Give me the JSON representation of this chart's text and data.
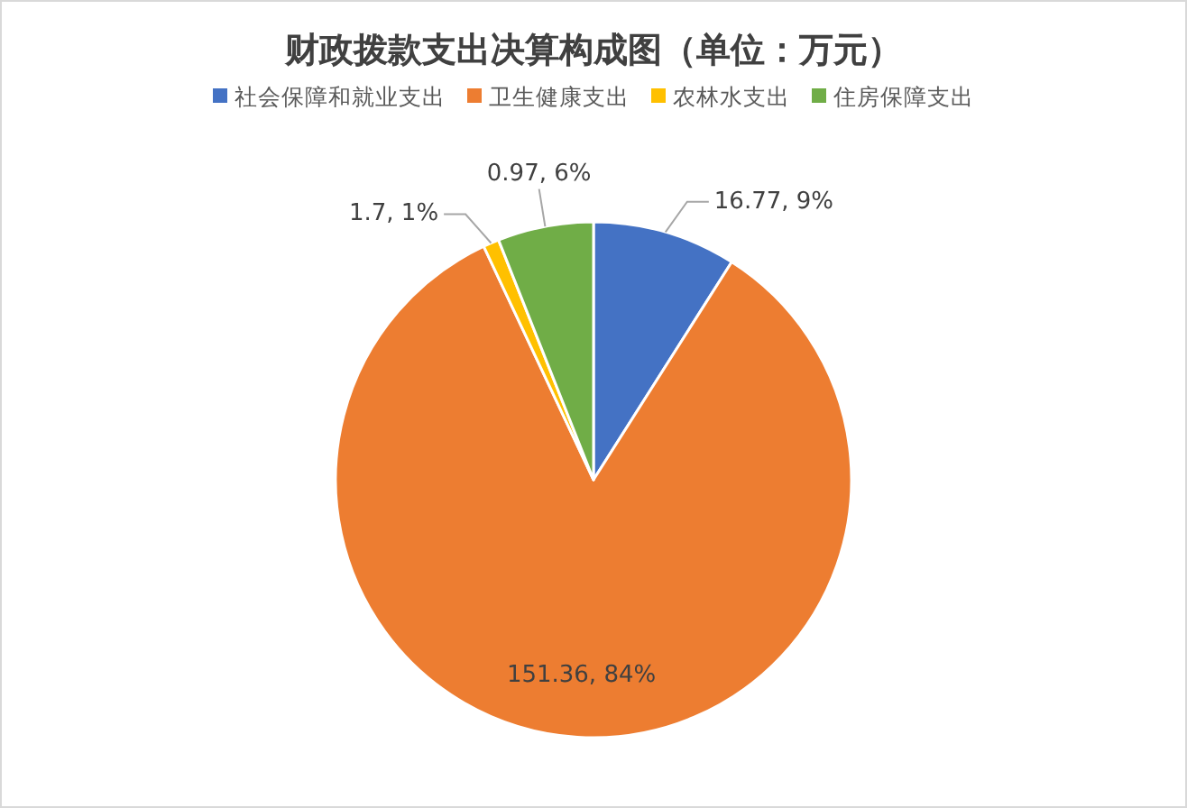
{
  "chart_data": {
    "type": "pie",
    "title": "财政拨款支出决算构成图（单位：万元）",
    "legend": "top",
    "categories": [
      "社会保障和就业支出",
      "卫生健康支出",
      "农林水支出",
      "住房保障支出"
    ],
    "values": [
      9,
      84,
      1,
      6
    ],
    "value_labels": [
      "16.77, 9%",
      "151.36, 84%",
      "1.7, 1%",
      "0.97, 6%"
    ],
    "colors": [
      "#4472c4",
      "#ed7d31",
      "#ffc000",
      "#70ad47"
    ]
  }
}
